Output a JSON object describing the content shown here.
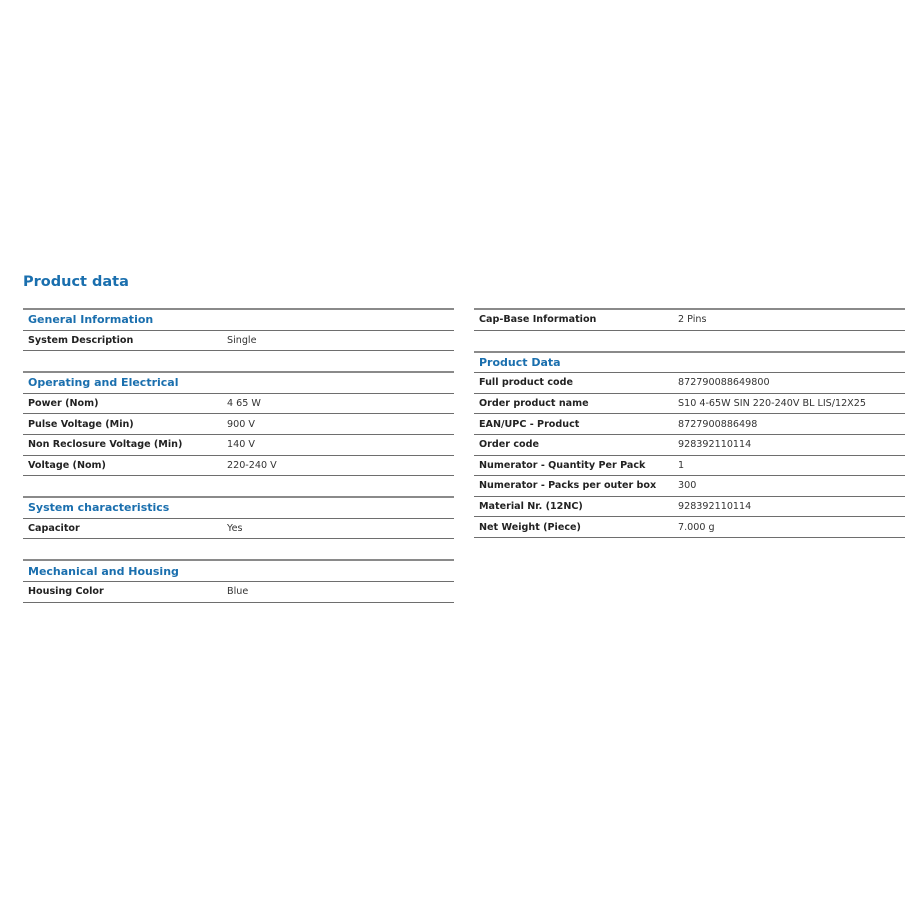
{
  "title": "Product data",
  "left_sections": [
    {
      "heading": "General Information",
      "rows": [
        {
          "k": "System Description",
          "v": "Single"
        }
      ]
    },
    {
      "heading": "Operating and Electrical",
      "rows": [
        {
          "k": "Power (Nom)",
          "v": "4 65 W"
        },
        {
          "k": "Pulse Voltage (Min)",
          "v": "900 V"
        },
        {
          "k": "Non Reclosure Voltage (Min)",
          "v": "140 V"
        },
        {
          "k": "Voltage (Nom)",
          "v": "220-240 V"
        }
      ]
    },
    {
      "heading": "System characteristics",
      "rows": [
        {
          "k": "Capacitor",
          "v": "Yes"
        }
      ]
    },
    {
      "heading": "Mechanical and Housing",
      "rows": [
        {
          "k": "Housing Color",
          "v": "Blue"
        }
      ]
    }
  ],
  "right_sections": [
    {
      "heading": "",
      "rows": [
        {
          "k": "Cap-Base Information",
          "v": "2 Pins"
        }
      ]
    },
    {
      "heading": "Product Data",
      "rows": [
        {
          "k": "Full product code",
          "v": "872790088649800"
        },
        {
          "k": "Order product name",
          "v": "S10 4-65W SIN 220-240V BL LIS/12X25"
        },
        {
          "k": "EAN/UPC - Product",
          "v": "8727900886498"
        },
        {
          "k": "Order code",
          "v": "928392110114"
        },
        {
          "k": "Numerator - Quantity Per Pack",
          "v": "1"
        },
        {
          "k": "Numerator - Packs per outer box",
          "v": "300"
        },
        {
          "k": "Material Nr. (12NC)",
          "v": "928392110114"
        },
        {
          "k": "Net Weight (Piece)",
          "v": "7.000 g"
        }
      ]
    }
  ]
}
